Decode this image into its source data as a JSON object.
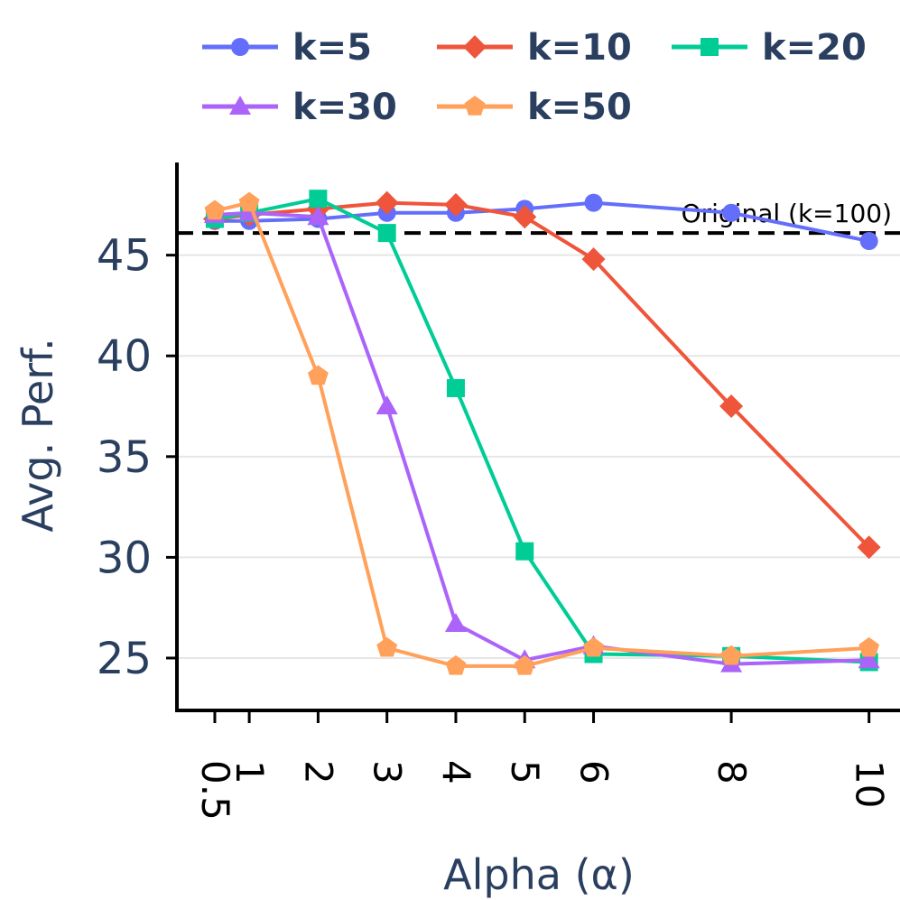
{
  "chart_data": {
    "type": "line",
    "title": "",
    "xlabel": "Alpha (α)",
    "ylabel": "Avg. Perf.",
    "x": [
      0.5,
      1,
      2,
      3,
      4,
      5,
      6,
      8,
      10
    ],
    "x_tick_labels": [
      "0.5",
      "1",
      "2",
      "3",
      "4",
      "5",
      "6",
      "8",
      "10"
    ],
    "y_ticks": [
      25,
      30,
      35,
      40,
      45
    ],
    "y_tick_labels": [
      "25",
      "30",
      "35",
      "40",
      "45"
    ],
    "xlim": [
      -0.05,
      10.45
    ],
    "ylim": [
      22.4,
      49.6
    ],
    "grid": "horizontal",
    "legend_position": "top",
    "reference_line": {
      "label": "Original (k=100)",
      "value": 46.1,
      "style": "dashed",
      "color": "#000000"
    },
    "series": [
      {
        "name": "k=5",
        "color": "#636efa",
        "marker": "circle",
        "values": [
          46.7,
          46.7,
          46.8,
          47.1,
          47.1,
          47.3,
          47.6,
          47.1,
          45.7
        ]
      },
      {
        "name": "k=10",
        "color": "#ef553b",
        "marker": "diamond",
        "values": [
          46.8,
          47.0,
          47.3,
          47.6,
          47.5,
          46.9,
          44.8,
          37.5,
          30.5
        ]
      },
      {
        "name": "k=20",
        "color": "#00cc96",
        "marker": "square",
        "values": [
          46.8,
          47.1,
          47.8,
          46.1,
          38.4,
          30.3,
          25.2,
          25.1,
          24.8
        ]
      },
      {
        "name": "k=30",
        "color": "#ab63fa",
        "marker": "triangle-up",
        "values": [
          47.0,
          47.1,
          46.9,
          37.5,
          26.7,
          24.9,
          25.6,
          24.7,
          24.9
        ]
      },
      {
        "name": "k=50",
        "color": "#ffa15a",
        "marker": "pentagon",
        "values": [
          47.2,
          47.6,
          39.0,
          25.5,
          24.6,
          24.6,
          25.5,
          25.1,
          25.5
        ]
      }
    ]
  }
}
